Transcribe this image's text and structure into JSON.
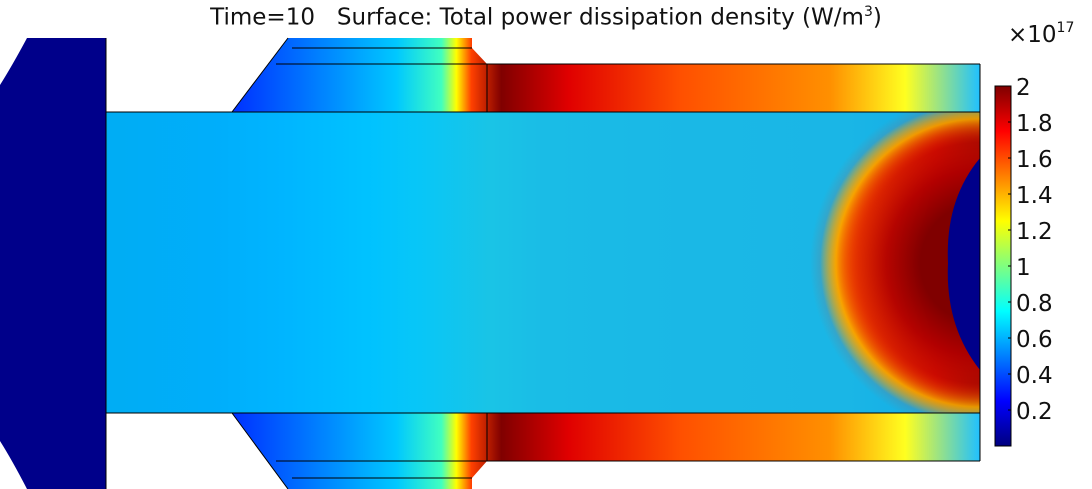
{
  "chart_data": {
    "type": "heatmap",
    "title_time": "Time=10",
    "title_surface": "Surface: Total power dissipation density (W/m",
    "title_exp": "3",
    "title_close": ")",
    "colorbar": {
      "multiplier_base": "×10",
      "multiplier_exp": "17",
      "range": [
        0,
        2
      ],
      "colormap": "jet",
      "ticks": [
        2,
        1.8,
        1.6,
        1.4,
        1.2,
        1,
        0.8,
        0.6,
        0.4,
        0.2
      ],
      "tick_labels": [
        "2",
        "1.8",
        "1.6",
        "1.4",
        "1.2",
        "1",
        "0.8",
        "0.6",
        "0.4",
        "0.2"
      ]
    },
    "colors": {
      "low": "#00007f",
      "mid": "#00ffff",
      "high": "#7f0000"
    }
  }
}
